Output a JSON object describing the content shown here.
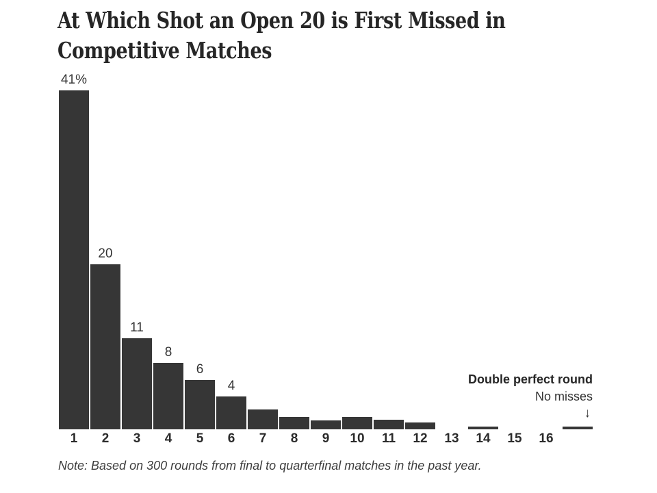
{
  "title": {
    "line1": "At Which Shot an Open 20 is First Missed in",
    "line2": "Competitive Matches"
  },
  "note": "Note: Based on 300 rounds from final to quarterfinal matches in the past year.",
  "colors": {
    "bar": "#363636",
    "title_text": "#262626",
    "label_text": "#333333",
    "tick_text": "#2b2b2b",
    "background": "#ffffff"
  },
  "chart_data": {
    "type": "bar",
    "title": "At Which Shot an Open 20 is First Missed in Competitive Matches",
    "xlabel": "",
    "ylabel": "",
    "unit": "percent of rounds",
    "categories": [
      "1",
      "2",
      "3",
      "4",
      "5",
      "6",
      "7",
      "8",
      "9",
      "10",
      "11",
      "12",
      "13",
      "14",
      "15",
      "16",
      "no misses"
    ],
    "tick_labels": [
      "1",
      "2",
      "3",
      "4",
      "5",
      "6",
      "7",
      "8",
      "9",
      "10",
      "11",
      "12",
      "13",
      "14",
      "15",
      "16",
      ""
    ],
    "values": [
      41,
      20,
      11,
      8,
      6,
      4,
      2.4,
      1.5,
      1.1,
      1.5,
      1.2,
      0.8,
      0,
      0.3,
      0,
      0,
      0.3
    ],
    "bar_labels": [
      "41%",
      "20",
      "11",
      "8",
      "6",
      "4",
      "",
      "",
      "",
      "",
      "",
      "",
      "",
      "",
      "",
      "",
      ""
    ],
    "ylim": [
      0,
      41
    ],
    "grid": false,
    "legend": false,
    "annotation": {
      "line1": "Double perfect round",
      "line2": "No misses",
      "arrow_glyph": "↓"
    }
  }
}
